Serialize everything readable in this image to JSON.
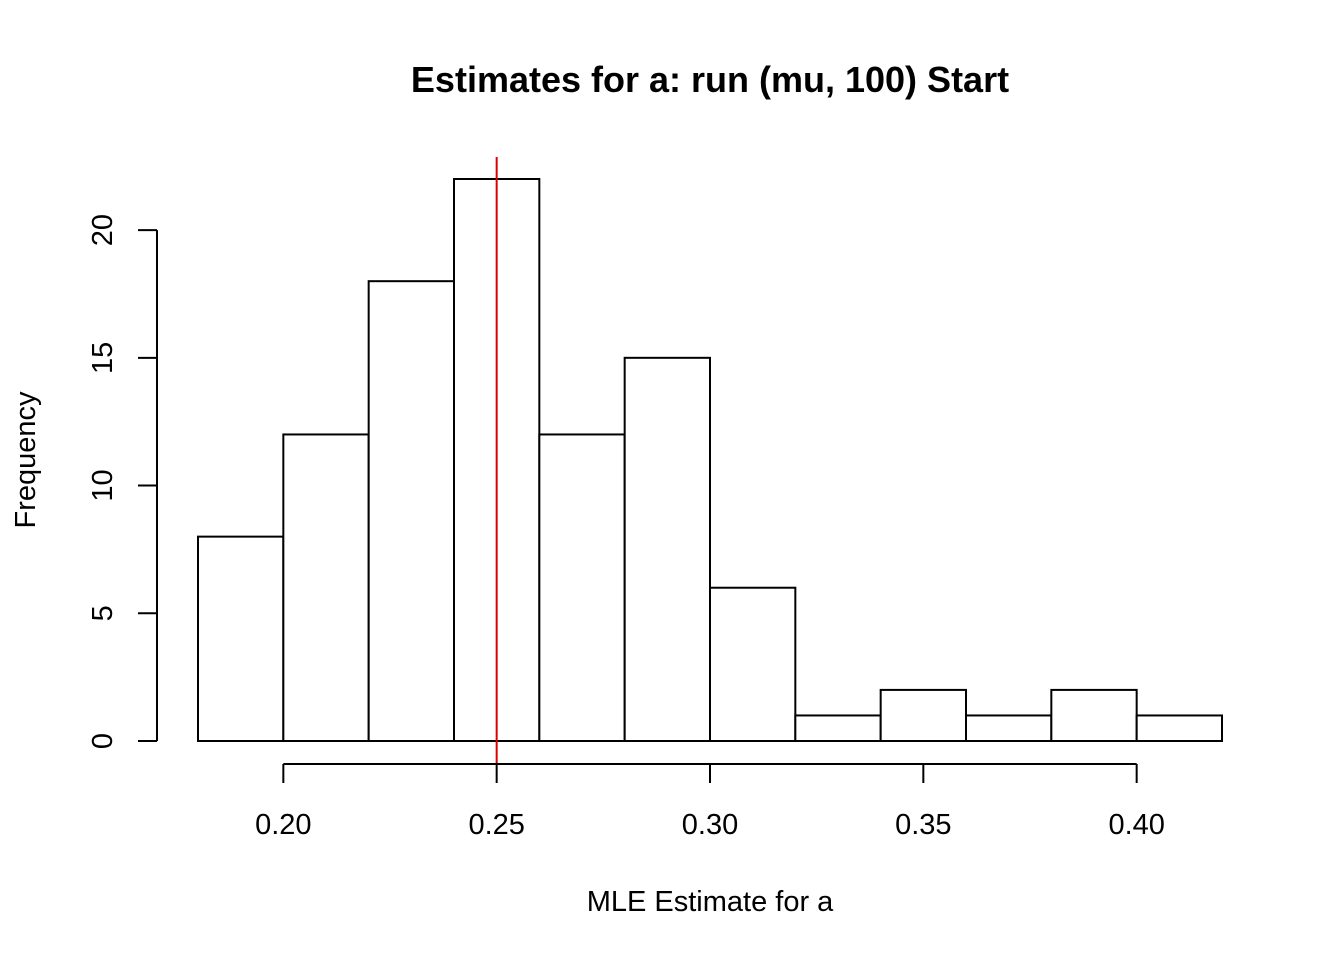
{
  "chart_data": {
    "type": "bar",
    "title": "Estimates for a: run (mu, 100) Start",
    "xlabel": "MLE Estimate for a",
    "ylabel": "Frequency",
    "bin_edges": [
      0.18,
      0.2,
      0.22,
      0.24,
      0.26,
      0.28,
      0.3,
      0.32,
      0.34,
      0.36,
      0.38,
      0.4,
      0.42
    ],
    "values": [
      8,
      12,
      18,
      22,
      12,
      15,
      6,
      1,
      2,
      1,
      2,
      1
    ],
    "xlim": [
      0.18,
      0.42
    ],
    "ylim": [
      0,
      22
    ],
    "x_ticks": [
      0.2,
      0.25,
      0.3,
      0.35,
      0.4
    ],
    "x_tick_labels": [
      "0.20",
      "0.25",
      "0.30",
      "0.35",
      "0.40"
    ],
    "y_ticks": [
      0,
      5,
      10,
      15,
      20
    ],
    "y_tick_labels": [
      "0",
      "5",
      "10",
      "15",
      "20"
    ],
    "reference_line": {
      "x": 0.25,
      "color": "#dd0000"
    },
    "bar_fill": "#ffffff",
    "bar_stroke": "#000000",
    "grid": false
  }
}
